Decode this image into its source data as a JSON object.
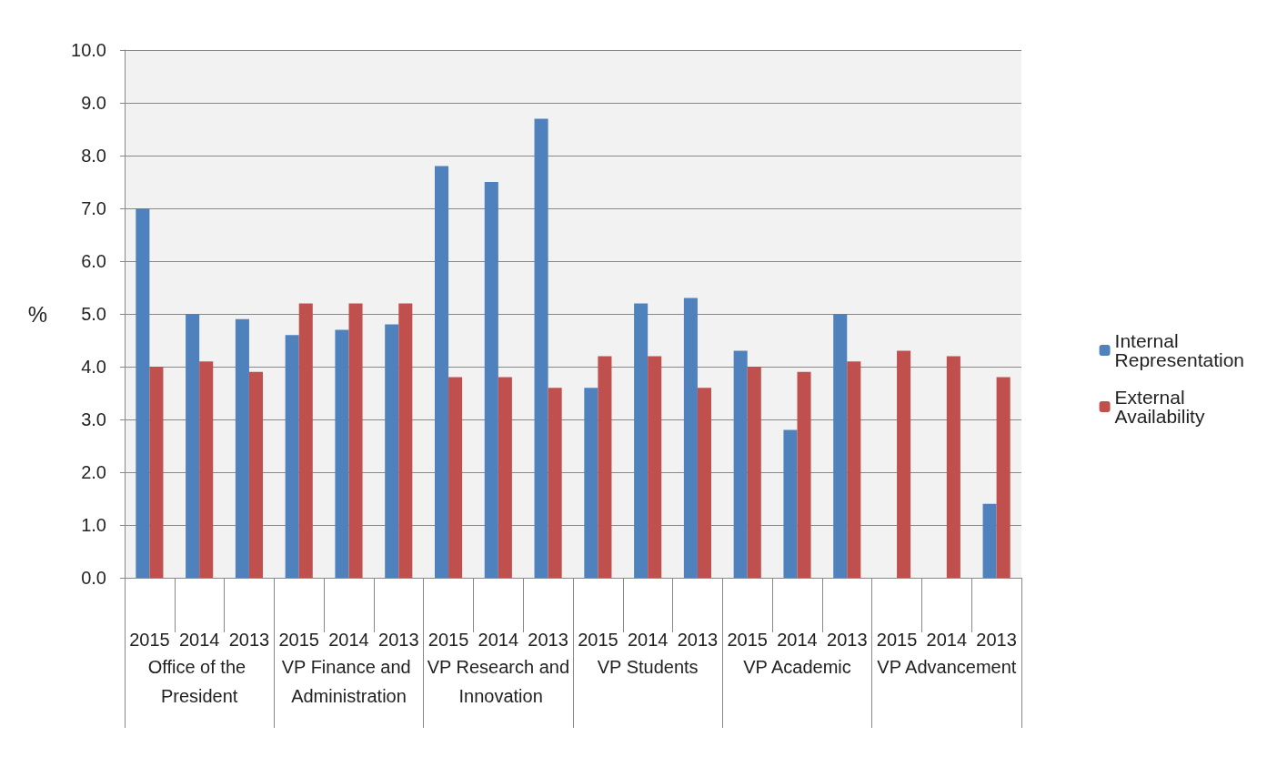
{
  "chart_data": {
    "type": "bar",
    "ylabel": "%",
    "categories": [
      "2015",
      "2014",
      "2013",
      "2015",
      "2014",
      "2013",
      "2015",
      "2014",
      "2013",
      "2015",
      "2014",
      "2013",
      "2015",
      "2014",
      "2013",
      "2015",
      "2014",
      "2013"
    ],
    "annotations": [
      "Office of the President",
      "VP Finance and Administration",
      "VP Research and Innovation",
      "VP Students",
      "VP Academic",
      "VP Advancement"
    ],
    "series": [
      {
        "name": "Internal Representation",
        "color": "#4f81bd",
        "values": [
          7.0,
          5.0,
          4.9,
          4.6,
          4.7,
          4.8,
          7.8,
          7.5,
          8.7,
          3.6,
          5.2,
          5.3,
          4.3,
          2.8,
          5.0,
          null,
          null,
          1.4
        ]
      },
      {
        "name": "External Availability",
        "color": "#c0504d",
        "values": [
          4.0,
          4.1,
          3.9,
          5.2,
          5.2,
          5.2,
          3.8,
          3.8,
          3.6,
          4.2,
          4.2,
          3.6,
          4.0,
          3.9,
          4.1,
          4.3,
          4.2,
          3.8
        ]
      }
    ],
    "ylim": [
      0,
      10
    ],
    "yticks": [
      {
        "value": 0,
        "label": "0.0"
      },
      {
        "value": 1,
        "label": "1.0"
      },
      {
        "value": 2,
        "label": "2.0"
      },
      {
        "value": 3,
        "label": "3.0"
      },
      {
        "value": 4,
        "label": "4.0"
      },
      {
        "value": 5,
        "label": "5.0"
      },
      {
        "value": 6,
        "label": "6.0"
      },
      {
        "value": 7,
        "label": "7.0"
      },
      {
        "value": 8,
        "label": "8.0"
      },
      {
        "value": 9,
        "label": "9.0"
      },
      {
        "value": 10,
        "label": "10.0"
      }
    ],
    "grid": "y",
    "legend": "right"
  }
}
